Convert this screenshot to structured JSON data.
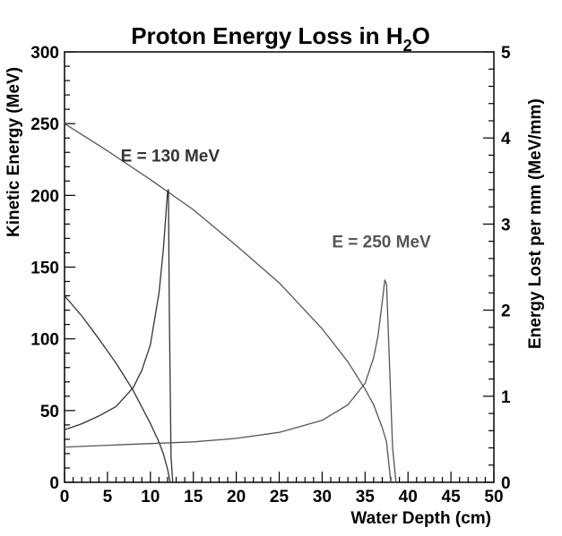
{
  "chart_data": {
    "type": "line",
    "title": "Proton Energy Loss in H",
    "title_subscript": "2",
    "title_suffix": "O",
    "xlabel": "Water Depth (cm)",
    "ylabel_left": "Kinetic Energy (MeV)",
    "ylabel_right": "Energy Lost per mm (MeV/mm)",
    "xlim": [
      0,
      50
    ],
    "ylim_left": [
      0,
      300
    ],
    "ylim_right": [
      0,
      5
    ],
    "x_ticks": [
      "0",
      "5",
      "10",
      "15",
      "20",
      "25",
      "30",
      "35",
      "40",
      "45",
      "50"
    ],
    "y_left_ticks": [
      "0",
      "50",
      "100",
      "150",
      "200",
      "250",
      "300"
    ],
    "y_right_ticks": [
      "0",
      "1",
      "2",
      "3",
      "4",
      "5"
    ],
    "grid": false,
    "annotations": [
      {
        "text": "E = 130 MeV",
        "x": 12.3,
        "y": 210,
        "color": "#333333"
      },
      {
        "text": "E = 250 MeV",
        "x": 36.9,
        "y": 150,
        "color": "#555555"
      }
    ],
    "series": [
      {
        "axis": "left",
        "color": "#333333",
        "x": [
          0,
          2,
          4,
          6,
          8,
          10,
          11,
          11.5,
          12,
          12.3
        ],
        "y": [
          130,
          116,
          100,
          83,
          64,
          41,
          28,
          20,
          9,
          0
        ]
      },
      {
        "axis": "left",
        "color": "#555555",
        "x": [
          0,
          5,
          10,
          15,
          20,
          25,
          30,
          33,
          35,
          36,
          37,
          37.5,
          38
        ],
        "y": [
          250,
          231,
          211,
          190,
          165,
          139,
          107,
          84,
          65,
          54,
          38,
          28,
          0
        ]
      },
      {
        "axis": "right",
        "color": "#333333",
        "x": [
          0,
          2,
          4,
          6,
          8,
          9,
          10,
          11,
          11.5,
          11.8,
          12.0,
          12.1,
          12.2,
          12.4,
          12.6
        ],
        "y": [
          0.61,
          0.68,
          0.77,
          0.88,
          1.1,
          1.3,
          1.6,
          2.2,
          2.7,
          3.1,
          3.38,
          3.4,
          2.0,
          0.3,
          0
        ]
      },
      {
        "axis": "right",
        "color": "#555555",
        "x": [
          0,
          5,
          10,
          15,
          20,
          25,
          30,
          33,
          35,
          36,
          36.5,
          37,
          37.3,
          37.5,
          37.8,
          38.2,
          38.6
        ],
        "y": [
          0.41,
          0.43,
          0.45,
          0.47,
          0.51,
          0.58,
          0.72,
          0.9,
          1.15,
          1.45,
          1.7,
          2.1,
          2.35,
          2.3,
          1.5,
          0.4,
          0
        ]
      }
    ]
  }
}
